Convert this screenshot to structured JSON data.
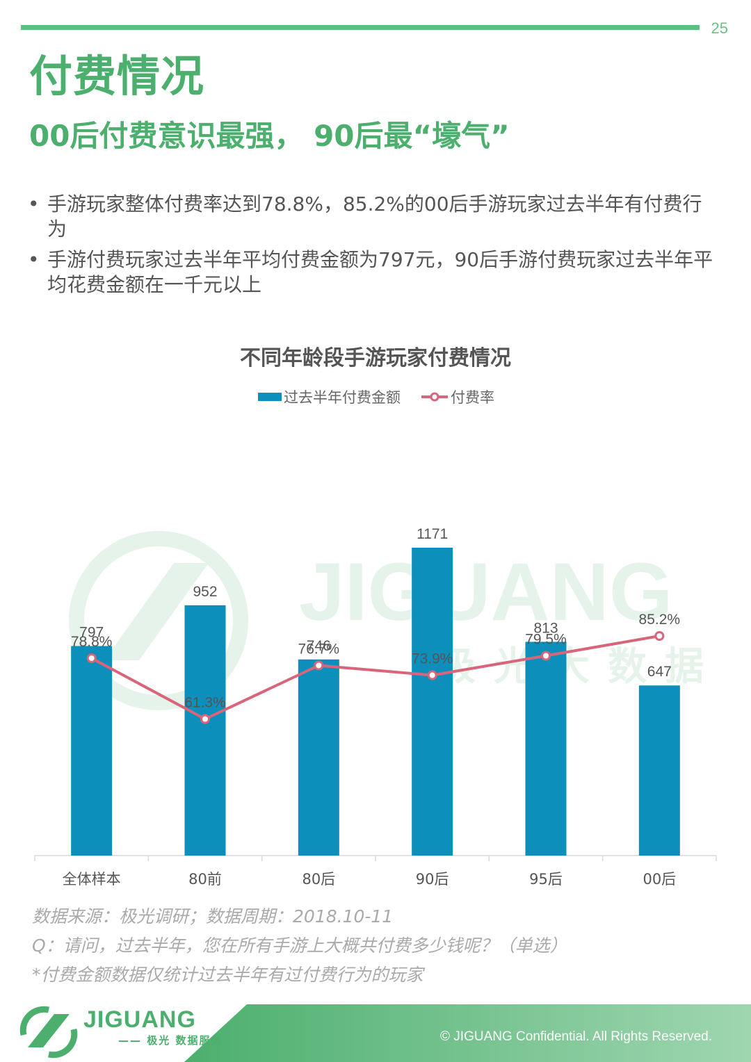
{
  "page": {
    "number": "25",
    "title": "付费情况",
    "subtitle": "00后付费意识最强， 90后最“壕气”",
    "bullets": [
      "手游玩家整体付费率达到78.8%，85.2%的00后手游玩家过去半年有付费行为",
      "手游付费玩家过去半年平均付费金额为797元，90后手游付费玩家过去半年平均花费金额在一千元以上"
    ],
    "source_lines": [
      "数据来源：极光调研；数据周期：2018.10-11",
      "Q：请问，过去半年，您在所有手游上大概共付费多少钱呢？（单选）",
      "*付费金额数据仅统计过去半年有过付费行为的玩家"
    ],
    "watermark": {
      "text": "JIGUANG",
      "subtext": "极光大数据"
    },
    "footer": {
      "logo_text": "JIGUANG",
      "logo_sub": "—— 极光 数据服务",
      "copyright": "© JIGUANG Confidential. All Rights Reserved."
    }
  },
  "colors": {
    "accent_green": "#4caf6e",
    "bar": "#0d8fbc",
    "line": "#d9657a"
  },
  "chart_data": {
    "type": "bar",
    "title": "不同年龄段手游玩家付费情况",
    "categories": [
      "全体样本",
      "80前",
      "80后",
      "90后",
      "95后",
      "00后"
    ],
    "series": [
      {
        "name": "过去半年付费金额",
        "type": "bar",
        "values": [
          797,
          952,
          746,
          1171,
          813,
          647
        ],
        "labels": [
          "797",
          "952",
          "746",
          "1171",
          "813",
          "647"
        ]
      },
      {
        "name": "付费率",
        "type": "line",
        "values": [
          78.8,
          61.3,
          76.7,
          73.9,
          79.5,
          85.2
        ],
        "labels": [
          "78.8%",
          "61.3%",
          "76.7%",
          "73.9%",
          "79.5%",
          "85.2%"
        ]
      }
    ],
    "legend_position": "top-center",
    "grid": false
  }
}
